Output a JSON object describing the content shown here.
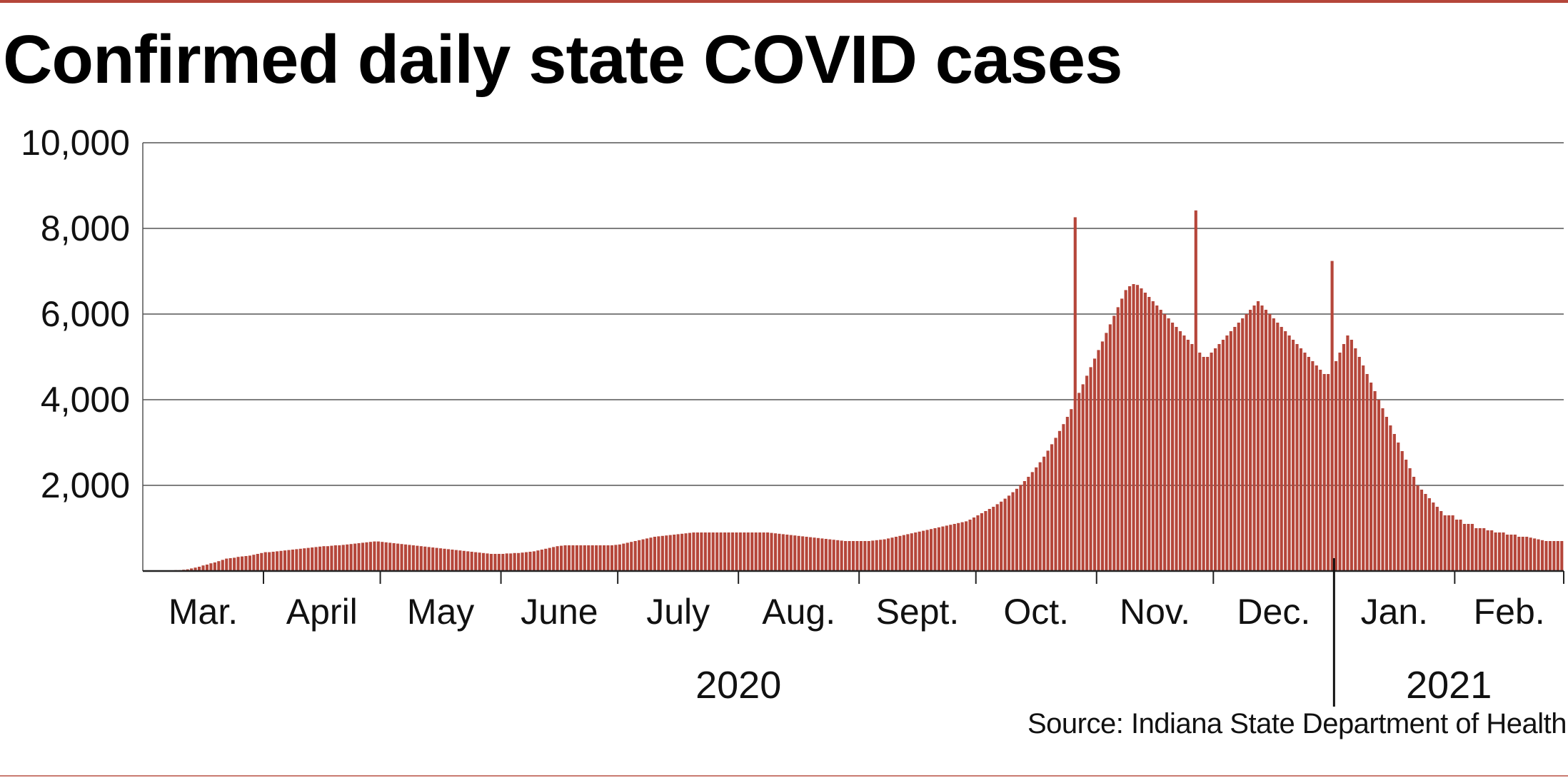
{
  "header": {
    "title": "Confirmed daily state COVID cases"
  },
  "source": "Source: Indiana State Department of Health",
  "colors": {
    "bar": "#b5463a",
    "rule": "#b5463a",
    "grid": "#555555"
  },
  "chart_data": {
    "type": "bar",
    "title": "Confirmed daily state COVID cases",
    "ylim": [
      0,
      10000
    ],
    "yticks": [
      {
        "value": 2000,
        "label": "2,000"
      },
      {
        "value": 4000,
        "label": "4,000"
      },
      {
        "value": 6000,
        "label": "6,000"
      },
      {
        "value": 8000,
        "label": "8,000"
      },
      {
        "value": 10000,
        "label": "10,000"
      }
    ],
    "grid": true,
    "months": [
      {
        "label": "Mar.",
        "days": 31
      },
      {
        "label": "April",
        "days": 30
      },
      {
        "label": "May",
        "days": 31
      },
      {
        "label": "June",
        "days": 30
      },
      {
        "label": "July",
        "days": 31
      },
      {
        "label": "Aug.",
        "days": 31
      },
      {
        "label": "Sept.",
        "days": 30
      },
      {
        "label": "Oct.",
        "days": 31
      },
      {
        "label": "Nov.",
        "days": 30
      },
      {
        "label": "Dec.",
        "days": 31
      },
      {
        "label": "Jan.",
        "days": 31
      },
      {
        "label": "Feb.",
        "days": 28
      }
    ],
    "years": [
      {
        "label": "2020",
        "first_month": 0,
        "last_month": 9
      },
      {
        "label": "2021",
        "first_month": 10,
        "last_month": 11
      }
    ],
    "series": [
      {
        "values": [
          0,
          0,
          0,
          0,
          0,
          0,
          10,
          10,
          20,
          20,
          30,
          40,
          60,
          80,
          100,
          130,
          150,
          180,
          200,
          230,
          260,
          290,
          300,
          310,
          330,
          340,
          350,
          360,
          380,
          400,
          420,
          440,
          440,
          450,
          460,
          470,
          480,
          490,
          500,
          510,
          520,
          530,
          540,
          550,
          560,
          570,
          580,
          580,
          590,
          600,
          600,
          610,
          620,
          630,
          640,
          650,
          660,
          670,
          680,
          690,
          690,
          680,
          670,
          660,
          650,
          640,
          630,
          620,
          610,
          600,
          590,
          580,
          570,
          560,
          550,
          540,
          530,
          520,
          510,
          500,
          490,
          480,
          470,
          460,
          450,
          440,
          430,
          420,
          410,
          400,
          400,
          400,
          400,
          410,
          410,
          420,
          420,
          430,
          440,
          450,
          460,
          480,
          500,
          520,
          540,
          560,
          580,
          590,
          600,
          600,
          600,
          600,
          600,
          600,
          600,
          600,
          600,
          600,
          600,
          600,
          600,
          610,
          620,
          640,
          660,
          680,
          700,
          720,
          740,
          760,
          780,
          800,
          810,
          820,
          830,
          840,
          850,
          860,
          870,
          880,
          890,
          900,
          900,
          900,
          900,
          900,
          900,
          900,
          900,
          900,
          900,
          900,
          900,
          900,
          900,
          900,
          900,
          900,
          900,
          900,
          900,
          890,
          880,
          870,
          860,
          850,
          840,
          830,
          820,
          810,
          800,
          790,
          780,
          770,
          760,
          750,
          740,
          730,
          720,
          710,
          700,
          700,
          700,
          700,
          700,
          700,
          700,
          710,
          720,
          730,
          740,
          760,
          780,
          800,
          820,
          840,
          860,
          880,
          900,
          920,
          940,
          960,
          980,
          1000,
          1020,
          1040,
          1060,
          1080,
          1100,
          1120,
          1140,
          1160,
          1200,
          1250,
          1300,
          1350,
          1400,
          1450,
          1500,
          1560,
          1620,
          1690,
          1760,
          1840,
          1920,
          2010,
          2100,
          2200,
          2310,
          2420,
          2540,
          2670,
          2810,
          2960,
          3110,
          3270,
          3430,
          3600,
          3780,
          3970,
          4160,
          4360,
          4560,
          4760,
          4960,
          5160,
          5360,
          5560,
          5760,
          5960,
          6160,
          6360,
          6560,
          6650,
          6700,
          6680,
          6600,
          6500,
          6400,
          6300,
          6200,
          6100,
          6000,
          5900,
          5800,
          5700,
          5600,
          5500,
          5400,
          5300,
          5200,
          5100,
          5000,
          5000,
          5100,
          5200,
          5300,
          5400,
          5500,
          5600,
          5700,
          5800,
          5900,
          6000,
          6100,
          6200,
          6300,
          6200,
          6100,
          6000,
          5900,
          5800,
          5700,
          5600,
          5500,
          5400,
          5300,
          5200,
          5100,
          5000,
          4900,
          4800,
          4700,
          4600,
          4600,
          4700,
          4900,
          5100,
          5300,
          5500,
          5400,
          5200,
          5000,
          4800,
          4600,
          4400,
          4200,
          4000,
          3800,
          3600,
          3400,
          3200,
          3000,
          2800,
          2600,
          2400,
          2200,
          2000,
          1900,
          1800,
          1700,
          1600,
          1500,
          1400,
          1300,
          1300,
          1300,
          1200,
          1200,
          1100,
          1100,
          1100,
          1000,
          1000,
          1000,
          950,
          950,
          900,
          900,
          900,
          850,
          850,
          850,
          800,
          800,
          800,
          780,
          760,
          740,
          720,
          700,
          700,
          700
        ],
        "peaks": [
          {
            "day": 239,
            "value": 8260
          },
          {
            "day": 270,
            "value": 8420
          },
          {
            "day": 305,
            "value": 7240
          }
        ]
      }
    ]
  }
}
